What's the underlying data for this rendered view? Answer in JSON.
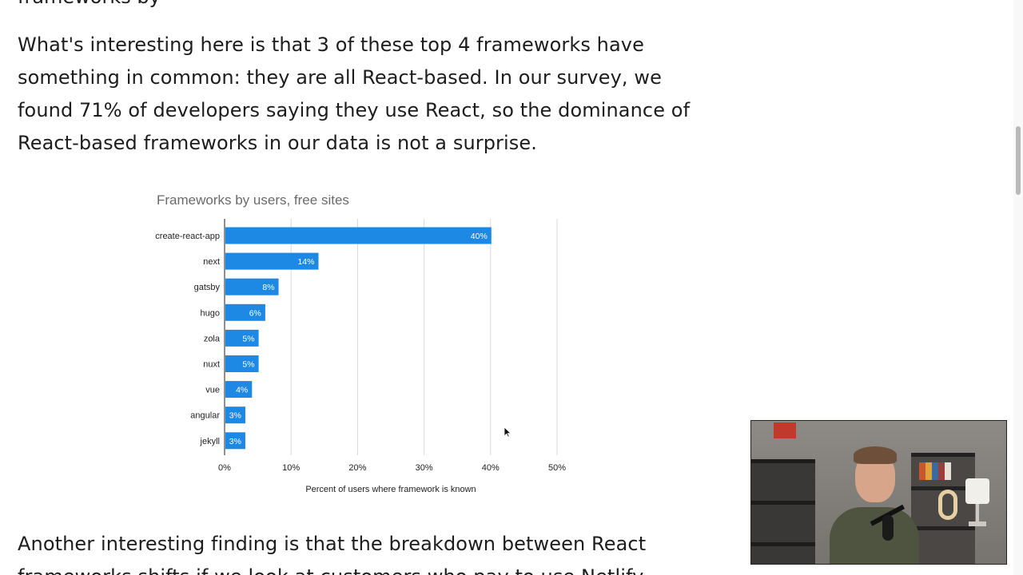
{
  "article": {
    "top_cut_text": "frameworks by",
    "paragraph_1": "What's interesting here is that 3 of these top 4 frameworks have something in common: they are all React-based. In our survey, we found 71% of developers saying they use React, so the dominance of React-based frameworks in our data is not a surprise.",
    "paragraph_2": "Another interesting finding is that the breakdown between React frameworks shifts if we look at customers who pay to use Netlify."
  },
  "chart_data": {
    "type": "bar",
    "orientation": "horizontal",
    "title": "Frameworks by users, free sites",
    "xlabel": "Percent of users where framework is known",
    "ylabel": "",
    "categories": [
      "create-react-app",
      "next",
      "gatsby",
      "hugo",
      "zola",
      "nuxt",
      "vue",
      "angular",
      "jekyll"
    ],
    "values": [
      40,
      14,
      8,
      6,
      5,
      5,
      4,
      3,
      3
    ],
    "value_labels": [
      "40%",
      "14%",
      "8%",
      "6%",
      "5%",
      "5%",
      "4%",
      "3%",
      "3%"
    ],
    "xticks": [
      0,
      10,
      20,
      30,
      40,
      50
    ],
    "xtick_labels": [
      "0%",
      "10%",
      "20%",
      "30%",
      "40%",
      "50%"
    ],
    "xlim": [
      0,
      50
    ],
    "grid": true,
    "bar_color": "#1e88e5"
  },
  "webcam": {
    "description_icon": "presenter-webcam-feed"
  }
}
